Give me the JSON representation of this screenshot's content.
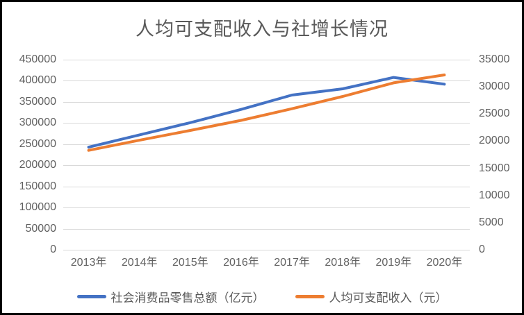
{
  "chart_data": {
    "type": "line",
    "title": "人均可支配收入与社增长情况",
    "categories": [
      "2013年",
      "2014年",
      "2015年",
      "2016年",
      "2017年",
      "2018年",
      "2019年",
      "2020年"
    ],
    "series": [
      {
        "name": "社会消费品零售总额（亿元）",
        "axis": "left",
        "color": "#4472C4",
        "values": [
          242843,
          271896,
          300931,
          332316,
          366262,
          380987,
          408017,
          391981
        ]
      },
      {
        "name": "人均可支配收入（元）",
        "axis": "right",
        "color": "#ED7D31",
        "values": [
          18311,
          20167,
          21966,
          23821,
          25974,
          28228,
          30733,
          32189
        ]
      }
    ],
    "left_axis": {
      "min": 0,
      "max": 450000,
      "step": 50000,
      "labels": [
        "450000",
        "400000",
        "350000",
        "300000",
        "250000",
        "200000",
        "150000",
        "100000",
        "50000",
        "0"
      ]
    },
    "right_axis": {
      "min": 0,
      "max": 35000,
      "step": 5000,
      "labels": [
        "35000",
        "30000",
        "25000",
        "20000",
        "15000",
        "10000",
        "5000",
        "0"
      ]
    },
    "grid": "horizontal",
    "legend_position": "bottom"
  },
  "colors": {
    "grid_line": "#D9D9D9",
    "axis_text": "#606060",
    "title_text": "#595959",
    "frame_border": "#000000"
  }
}
